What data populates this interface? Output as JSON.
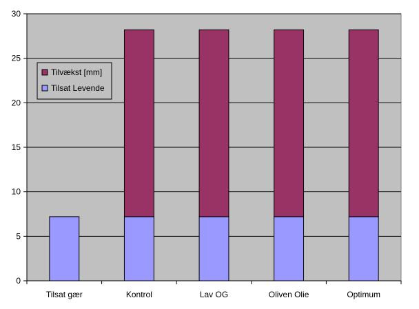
{
  "chart_data": {
    "type": "bar",
    "stacked": true,
    "categories": [
      "Tilsat gær",
      "Kontrol",
      "Lav OG",
      "Oliven Olie",
      "Optimum"
    ],
    "series": [
      {
        "name": "Tilsat Levende",
        "values": [
          7.2,
          7.2,
          7.2,
          7.2,
          7.2
        ],
        "color": "#9999ff"
      },
      {
        "name": "Tilvækst [mm]",
        "values": [
          0,
          21.0,
          21.0,
          21.0,
          21.0
        ],
        "color": "#993366"
      }
    ],
    "ylim": [
      0,
      30
    ],
    "yticks": [
      0,
      5,
      10,
      15,
      20,
      25,
      30
    ],
    "grid": true,
    "plot_background": "#c0c0c0",
    "legend": {
      "placement": "left-top inside",
      "entries": [
        "Tilvækst [mm]",
        "Tilsat Levende"
      ]
    }
  }
}
